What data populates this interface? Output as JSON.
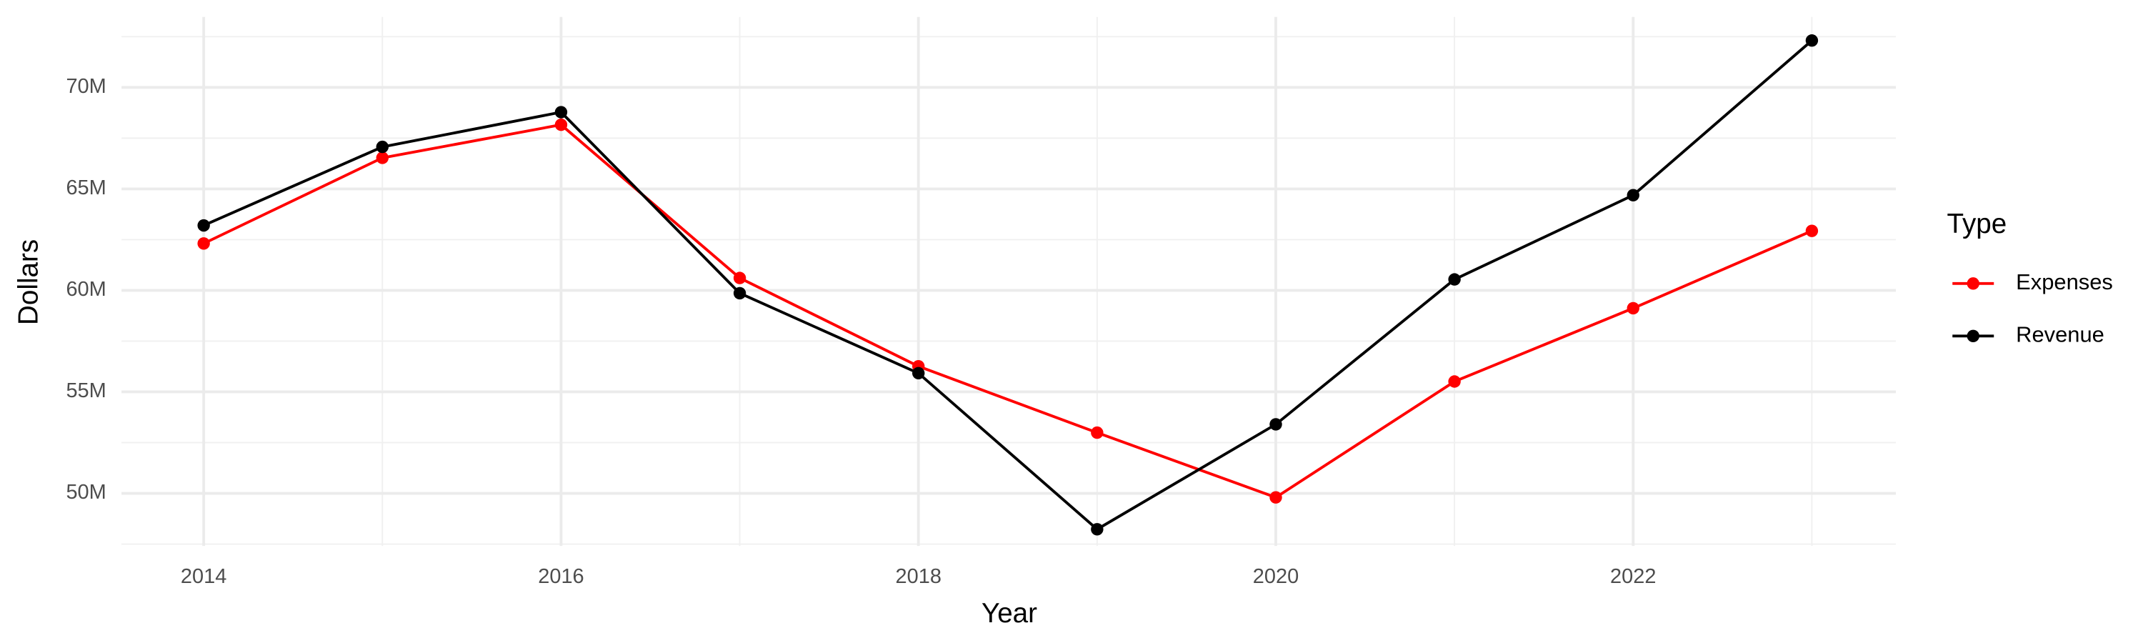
{
  "chart_data": {
    "type": "line",
    "x_label": "Year",
    "y_label": "Dollars",
    "legend_title": "Type",
    "legend_position": "right",
    "grid": true,
    "x": [
      2014,
      2015,
      2016,
      2017,
      2018,
      2019,
      2020,
      2021,
      2022,
      2023
    ],
    "series": [
      {
        "name": "Expenses",
        "color": "#ff0000",
        "values": [
          62310000,
          66530000,
          68160000,
          60610000,
          56260000,
          52990000,
          49800000,
          55510000,
          59120000,
          62930000
        ]
      },
      {
        "name": "Revenue",
        "color": "#000000",
        "values": [
          63200000,
          67070000,
          68780000,
          59860000,
          55920000,
          48230000,
          53400000,
          60540000,
          64690000,
          72310000
        ]
      }
    ],
    "xlim": [
      2013.54,
      2023.47
    ],
    "xticks": [
      2014,
      2016,
      2018,
      2020,
      2022
    ],
    "xminorticks": [
      2015,
      2017,
      2019,
      2021,
      2023
    ],
    "ylim": [
      47410000,
      73470000
    ],
    "yticks": [
      {
        "value": 50000000,
        "label": "50M"
      },
      {
        "value": 55000000,
        "label": "55M"
      },
      {
        "value": 60000000,
        "label": "60M"
      },
      {
        "value": 65000000,
        "label": "65M"
      },
      {
        "value": 70000000,
        "label": "70M"
      }
    ],
    "yminorticks": [
      47500000,
      52500000,
      57500000,
      62500000,
      67500000,
      72500000
    ]
  }
}
